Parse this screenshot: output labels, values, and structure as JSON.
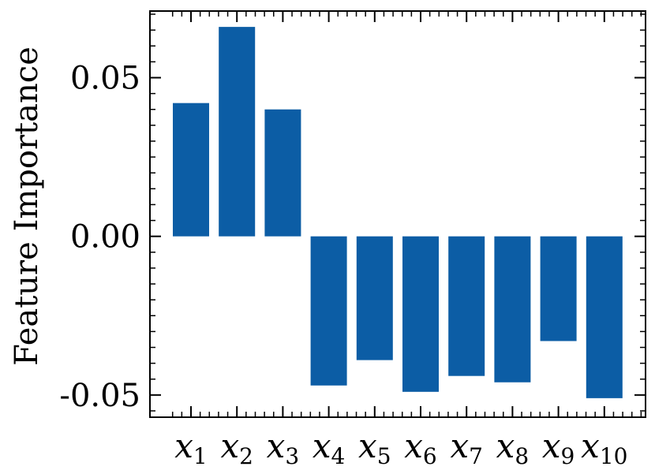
{
  "chart_data": {
    "type": "bar",
    "ylabel": "Feature Importance",
    "xlabel": "",
    "categories": [
      {
        "base": "x",
        "sub": "1"
      },
      {
        "base": "x",
        "sub": "2"
      },
      {
        "base": "x",
        "sub": "3"
      },
      {
        "base": "x",
        "sub": "4"
      },
      {
        "base": "x",
        "sub": "5"
      },
      {
        "base": "x",
        "sub": "6"
      },
      {
        "base": "x",
        "sub": "7"
      },
      {
        "base": "x",
        "sub": "8"
      },
      {
        "base": "x",
        "sub": "9"
      },
      {
        "base": "x",
        "sub": "10"
      }
    ],
    "values": [
      0.042,
      0.066,
      0.04,
      -0.047,
      -0.039,
      -0.049,
      -0.044,
      -0.046,
      -0.033,
      -0.051
    ],
    "ylim": [
      -0.057,
      0.071
    ],
    "yticks": [
      -0.05,
      0.0,
      0.05
    ],
    "ytick_labels": [
      "-0.05",
      "0.00",
      "0.05"
    ],
    "bar_color": "#0c5da5",
    "grid": false
  }
}
